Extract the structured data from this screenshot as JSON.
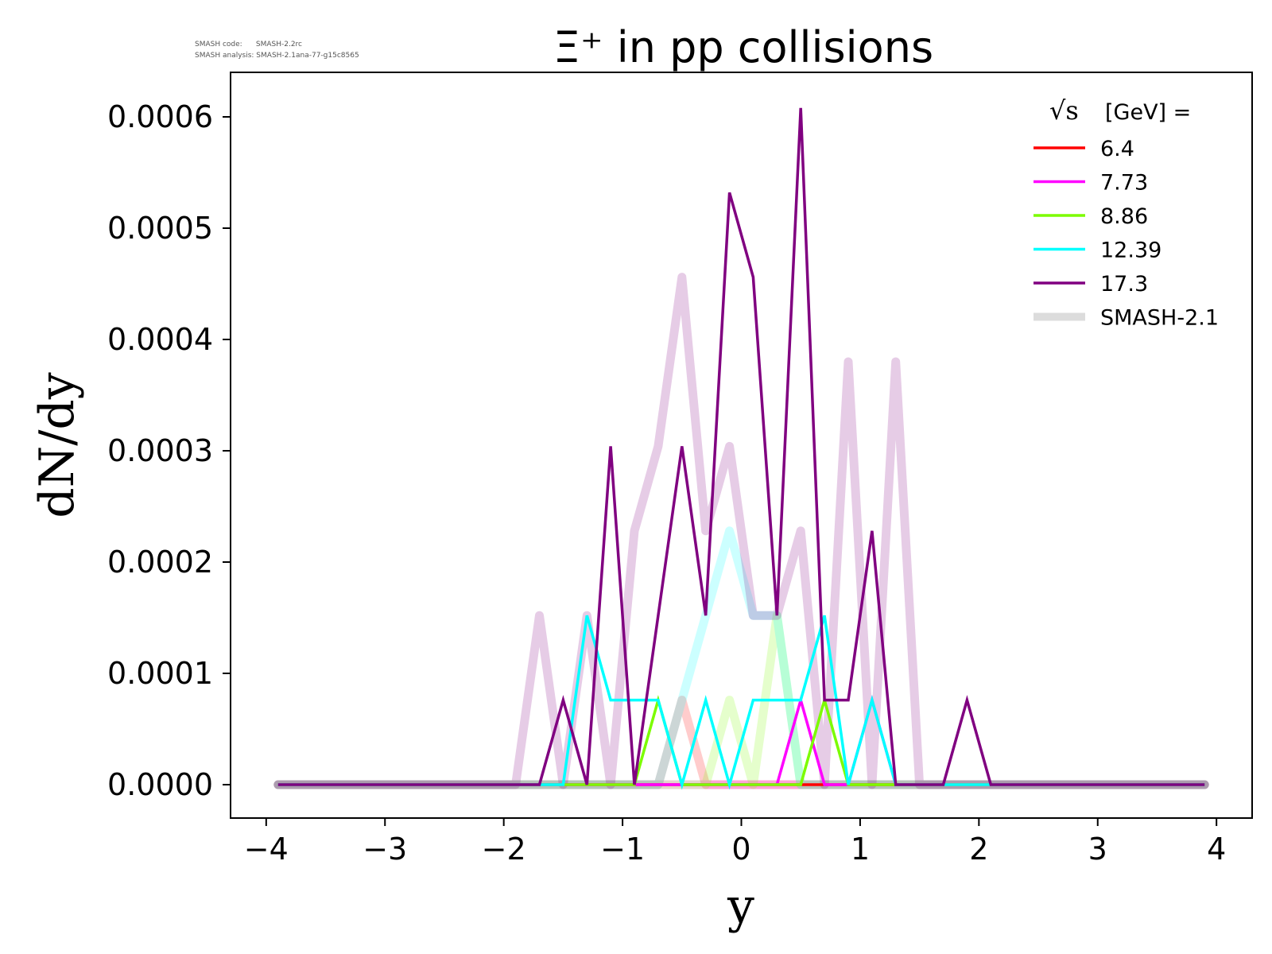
{
  "meta": {
    "line1": "SMASH code:      SMASH-2.2rc",
    "line2": "SMASH analysis: SMASH-2.1ana-77-g15c8565"
  },
  "chart_data": {
    "type": "line",
    "title": "Ξ⁺ in pp collisions",
    "xlabel": "y",
    "ylabel": "dN/dy",
    "xlim": [
      -4.3,
      4.3
    ],
    "ylim": [
      -3e-05,
      0.00064
    ],
    "xticks": [
      -4,
      -3,
      -2,
      -1,
      0,
      1,
      2,
      3,
      4
    ],
    "xtick_labels": [
      "−4",
      "−3",
      "−2",
      "−1",
      "0",
      "1",
      "2",
      "3",
      "4"
    ],
    "yticks": [
      0,
      0.0001,
      0.0002,
      0.0003,
      0.0004,
      0.0005,
      0.0006
    ],
    "ytick_labels": [
      "0.0000",
      "0.0001",
      "0.0002",
      "0.0003",
      "0.0004",
      "0.0005",
      "0.0006"
    ],
    "grid": false,
    "legend_placement": "top-right",
    "legend_title_sqrt": "√s",
    "legend_title": "[GeV] =",
    "x": [
      -3.9,
      -3.7,
      -3.5,
      -3.3,
      -3.1,
      -2.9,
      -2.7,
      -2.5,
      -2.3,
      -2.1,
      -1.9,
      -1.7,
      -1.5,
      -1.3,
      -1.1,
      -0.9,
      -0.7,
      -0.5,
      -0.3,
      -0.1,
      0.1,
      0.3,
      0.5,
      0.7,
      0.9,
      1.1,
      1.3,
      1.5,
      1.7,
      1.9,
      2.1,
      2.3,
      2.5,
      2.7,
      2.9,
      3.1,
      3.3,
      3.5,
      3.7,
      3.9
    ],
    "series": [
      {
        "name": "6.4",
        "color": "#ff0000",
        "values": [
          0,
          0,
          0,
          0,
          0,
          0,
          0,
          0,
          0,
          0,
          0,
          0,
          0,
          0,
          0,
          0,
          0,
          0,
          0,
          0,
          0,
          0,
          0,
          0,
          0,
          0,
          0,
          0,
          0,
          0,
          0,
          0,
          0,
          0,
          0,
          0,
          0,
          0,
          0,
          0
        ]
      },
      {
        "name": "7.73",
        "color": "#ff00ff",
        "values": [
          0,
          0,
          0,
          0,
          0,
          0,
          0,
          0,
          0,
          0,
          0,
          0,
          0,
          0,
          0,
          0,
          0,
          0,
          0,
          0,
          0,
          0,
          7.6e-05,
          0,
          0,
          7.6e-05,
          0,
          0,
          0,
          0,
          0,
          0,
          0,
          0,
          0,
          0,
          0,
          0,
          0,
          0
        ]
      },
      {
        "name": "8.86",
        "color": "#7cfc00",
        "values": [
          0,
          0,
          0,
          0,
          0,
          0,
          0,
          0,
          0,
          0,
          0,
          0,
          0,
          0,
          0,
          0,
          7.6e-05,
          0,
          0,
          0,
          0,
          0,
          0,
          7.6e-05,
          0,
          0,
          0,
          0,
          0,
          0,
          0,
          0,
          0,
          0,
          0,
          0,
          0,
          0,
          0,
          0
        ]
      },
      {
        "name": "12.39",
        "color": "#00ffff",
        "values": [
          0,
          0,
          0,
          0,
          0,
          0,
          0,
          0,
          0,
          0,
          0,
          0,
          0,
          0.000152,
          7.6e-05,
          7.6e-05,
          7.6e-05,
          0,
          7.6e-05,
          0,
          7.6e-05,
          7.6e-05,
          7.6e-05,
          0.000152,
          0,
          7.6e-05,
          0,
          0,
          0,
          0,
          0,
          0,
          0,
          0,
          0,
          0,
          0,
          0,
          0,
          0
        ]
      },
      {
        "name": "17.3",
        "color": "#800080",
        "values": [
          0,
          0,
          0,
          0,
          0,
          0,
          0,
          0,
          0,
          0,
          0,
          0,
          7.6e-05,
          0,
          0.000304,
          0,
          0.000152,
          0.000304,
          0.000152,
          0.000532,
          0.000456,
          0.000152,
          0.000608,
          7.6e-05,
          7.6e-05,
          0.000228,
          0,
          0,
          0,
          7.6e-05,
          0,
          0,
          0,
          0,
          0,
          0,
          0,
          0,
          0,
          0
        ]
      }
    ],
    "reference_label": "SMASH-2.1",
    "reference_series": [
      {
        "color": "#ff0000",
        "values": [
          0,
          0,
          0,
          0,
          0,
          0,
          0,
          0,
          0,
          0,
          0,
          0,
          0,
          0,
          0,
          0,
          0,
          7.6e-05,
          0,
          0,
          0,
          0,
          0,
          0,
          0,
          0,
          0,
          0,
          0,
          0,
          0,
          0,
          0,
          0,
          0,
          0,
          0,
          0,
          0,
          0
        ]
      },
      {
        "color": "#ff00ff",
        "values": [
          0,
          0,
          0,
          0,
          0,
          0,
          0,
          0,
          0,
          0,
          0,
          0,
          0,
          0,
          0,
          0,
          0,
          0,
          0,
          0,
          0,
          0,
          0,
          0,
          0,
          0,
          0,
          0,
          0,
          0,
          0,
          0,
          0,
          0,
          0,
          0,
          0,
          0,
          0,
          0
        ]
      },
      {
        "color": "#7cfc00",
        "values": [
          0,
          0,
          0,
          0,
          0,
          0,
          0,
          0,
          0,
          0,
          0,
          0,
          0,
          0,
          0,
          0,
          0,
          0,
          0,
          7.6e-05,
          0,
          0.000152,
          0,
          0,
          0,
          0,
          0,
          0,
          0,
          0,
          0,
          0,
          0,
          0,
          0,
          0,
          0,
          0,
          0,
          0
        ]
      },
      {
        "color": "#00ffff",
        "values": [
          0,
          0,
          0,
          0,
          0,
          0,
          0,
          0,
          0,
          0,
          0,
          0,
          0,
          0,
          0,
          0,
          0,
          7.6e-05,
          0.000152,
          0.000228,
          0.000152,
          0.000152,
          0,
          0,
          0,
          0,
          0,
          0,
          0,
          0,
          0,
          0,
          0,
          0,
          0,
          0,
          0,
          0,
          0,
          0
        ]
      },
      {
        "color": "#800080",
        "values": [
          0,
          0,
          0,
          0,
          0,
          0,
          0,
          0,
          0,
          0,
          0,
          0.000152,
          0,
          0.000152,
          0,
          0.000228,
          0.000304,
          0.000456,
          0.000228,
          0.000304,
          0.000152,
          0.000152,
          0.000228,
          0,
          0.00038,
          0,
          0.00038,
          0,
          0,
          0,
          0,
          0,
          0,
          0,
          0,
          0,
          0,
          0,
          0,
          0
        ]
      }
    ]
  }
}
